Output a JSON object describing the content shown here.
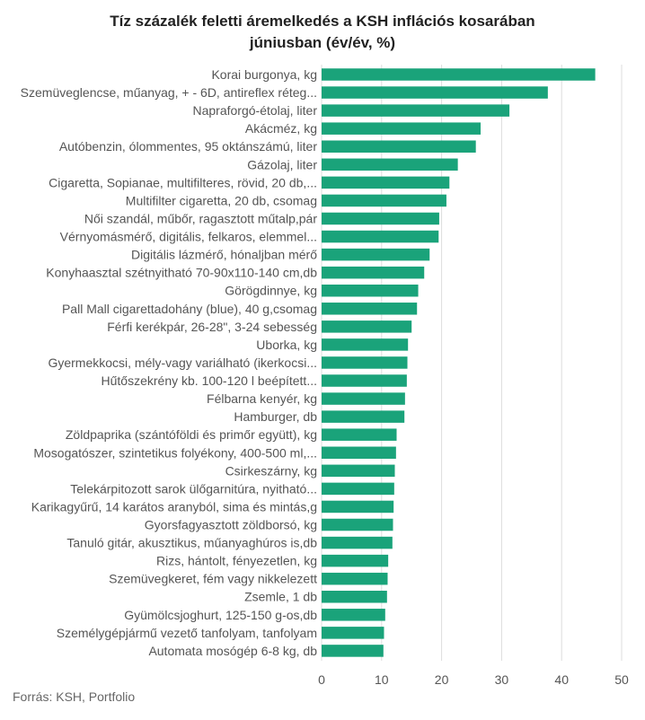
{
  "chart_data": {
    "type": "bar",
    "orientation": "horizontal",
    "title_lines": [
      "Tíz százalék feletti áremelkedés a KSH inflációs kosarában",
      "júniusban (év/év, %)"
    ],
    "categories": [
      "Korai burgonya, kg",
      "Szemüveglencse, műanyag, + - 6D, antireflex réteg...",
      "Napraforgó-étolaj, liter",
      "Akácméz, kg",
      "Autóbenzin, ólommentes, 95 oktánszámú, liter",
      "Gázolaj, liter",
      "Cigaretta, Sopianae, multifilteres, rövid, 20 db,...",
      "Multifilter cigaretta, 20 db, csomag",
      "Női szandál, műbőr, ragasztott műtalp,pár",
      "Vérnyomásmérő, digitális, felkaros, elemmel...",
      "Digitális lázmérő, hónaljban mérő",
      "Konyhaasztal szétnyitható 70-90x110-140 cm,db",
      "Görögdinnye, kg",
      "Pall Mall cigarettadohány (blue), 40 g,csomag",
      "Férfi kerékpár, 26-28\", 3-24 sebesség",
      "Uborka, kg",
      "Gyermekkocsi, mély-vagy variálható (ikerkocsi...",
      "Hűtőszekrény kb. 100-120 l beépített...",
      "Félbarna kenyér, kg",
      "Hamburger, db",
      "Zöldpaprika (szántóföldi és primőr együtt), kg",
      "Mosogatószer, szintetikus folyékony, 400-500 ml,...",
      "Csirkeszárny, kg",
      "Telekárpitozott sarok ülőgarnitúra, nyitható...",
      "Karikagyűrű, 14 karátos aranyból, sima és mintás,g",
      "Gyorsfagyasztott zöldborsó, kg",
      "Tanuló gitár, akusztikus, műanyaghúros is,db",
      "Rizs, hántolt, fényezetlen, kg",
      "Szemüvegkeret, fém vagy nikkelezett",
      "Zsemle, 1 db",
      "Gyümölcsjoghurt, 125-150 g-os,db",
      "Személygépjármű vezető tanfolyam, tanfolyam",
      "Automata mosógép 6-8 kg,  db"
    ],
    "values": [
      45.6,
      37.7,
      31.3,
      26.5,
      25.7,
      22.7,
      21.3,
      20.8,
      19.6,
      19.5,
      18.0,
      17.1,
      16.1,
      15.9,
      15.0,
      14.4,
      14.3,
      14.2,
      13.9,
      13.8,
      12.5,
      12.4,
      12.2,
      12.1,
      12.0,
      11.9,
      11.8,
      11.1,
      11.0,
      10.9,
      10.6,
      10.4,
      10.3
    ],
    "xlim": [
      0,
      50
    ],
    "xticks": [
      "0",
      "10",
      "20",
      "30",
      "40",
      "50"
    ],
    "grid": true,
    "bar_color": "#1aa37a",
    "grid_color": "#dddddd",
    "label_color": "#555555"
  },
  "footer": {
    "source": "Forrás: KSH, Portfolio"
  }
}
